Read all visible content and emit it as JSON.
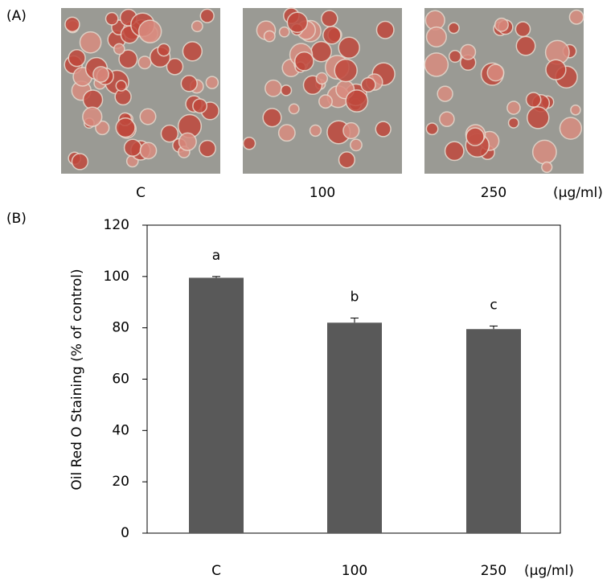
{
  "panel_a": {
    "label": "(A)",
    "images": [
      {
        "label": "C"
      },
      {
        "label": "100"
      },
      {
        "label": "250"
      }
    ],
    "unit": "(μg/ml)"
  },
  "chart_data": {
    "type": "bar",
    "panel_label": "(B)",
    "y_label": "Oil Red O Staining (% of control)",
    "categories": [
      "C",
      "100",
      "250"
    ],
    "x_unit": "(μg/ml)",
    "values": [
      99.5,
      82,
      79.5
    ],
    "errors": [
      0.5,
      1.8,
      1.2
    ],
    "annotations": [
      "a",
      "b",
      "c"
    ],
    "color": "#595959",
    "ylim": [
      0,
      120
    ],
    "yticks": [
      0,
      20,
      40,
      60,
      80,
      100,
      120
    ],
    "grid": false
  }
}
